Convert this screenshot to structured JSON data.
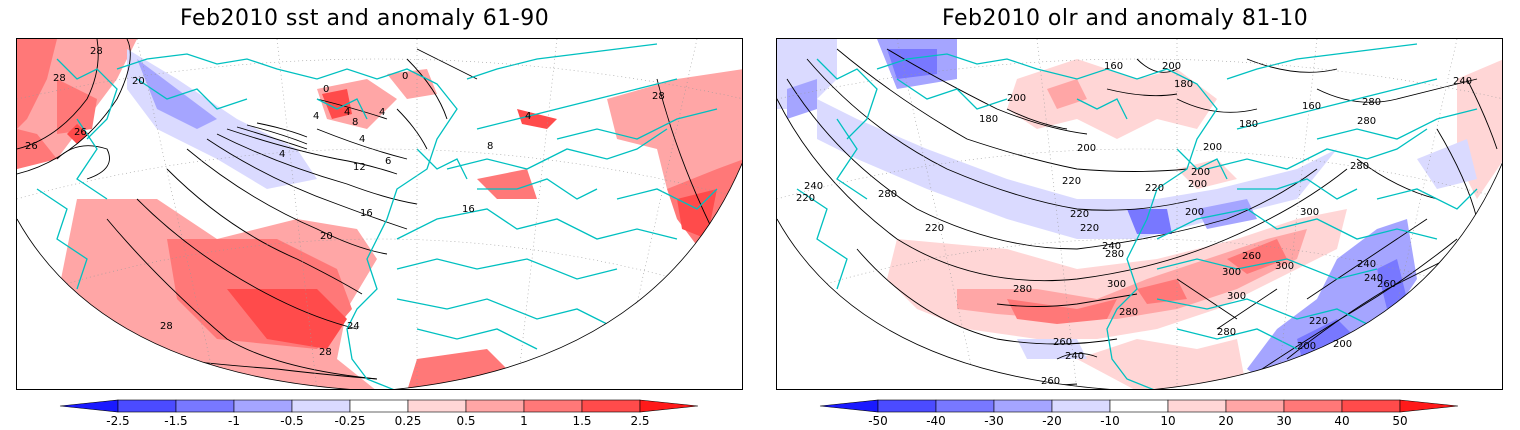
{
  "panels": [
    {
      "id": "sst",
      "title": "Feb2010 sst and anomaly 61-90",
      "contour_labels": [
        "28",
        "28",
        "26",
        "26",
        "20",
        "0",
        "4",
        "4",
        "4",
        "8",
        "4",
        "12",
        "6",
        "16",
        "16",
        "20",
        "8",
        "4",
        "24",
        "28",
        "28",
        "28",
        "0",
        "4"
      ],
      "colorbar": {
        "labels": [
          "-2.5",
          "-1.5",
          "-1",
          "-0.5",
          "-0.25",
          "0.25",
          "0.5",
          "1",
          "1.5",
          "2.5"
        ],
        "colors": [
          "#1a1aff",
          "#4b4bff",
          "#7878ff",
          "#a5a5ff",
          "#dadaff",
          "#ffffff",
          "#ffd6d6",
          "#ffa6a6",
          "#ff7878",
          "#ff4b4b",
          "#ff1a1a"
        ]
      }
    },
    {
      "id": "olr",
      "title": "Feb2010 olr and anomaly 81-10",
      "contour_labels": [
        "200",
        "160",
        "200",
        "180",
        "180",
        "160",
        "280",
        "240",
        "180",
        "200",
        "200",
        "200",
        "200",
        "280",
        "280",
        "220",
        "240",
        "280",
        "220",
        "220",
        "220",
        "220",
        "220",
        "200",
        "300",
        "280",
        "240",
        "260",
        "300",
        "260",
        "300",
        "240",
        "280",
        "300",
        "300",
        "220",
        "280",
        "280",
        "200",
        "200",
        "260",
        "240",
        "260",
        "240"
      ],
      "colorbar": {
        "labels": [
          "-50",
          "-40",
          "-30",
          "-20",
          "-10",
          "10",
          "20",
          "30",
          "40",
          "50"
        ],
        "colors": [
          "#1a1aff",
          "#4b4bff",
          "#7878ff",
          "#a5a5ff",
          "#dadaff",
          "#ffffff",
          "#ffd6d6",
          "#ffa6a6",
          "#ff7878",
          "#ff4b4b",
          "#ff1a1a"
        ]
      }
    }
  ]
}
